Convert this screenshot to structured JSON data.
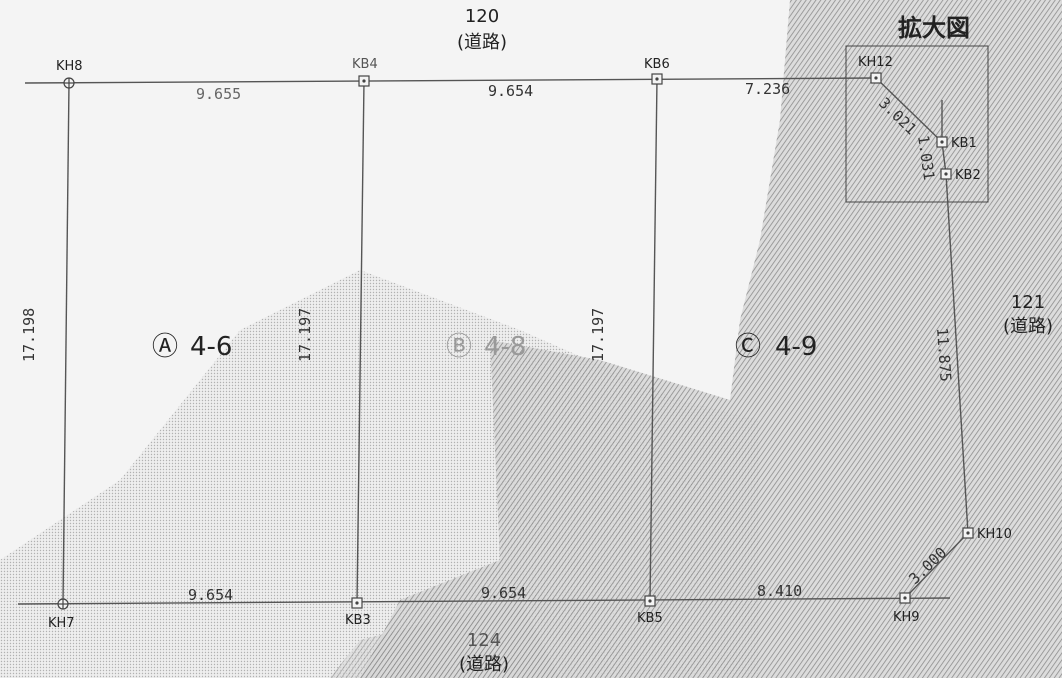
{
  "roads": {
    "top": {
      "number": "120",
      "name": "(道路)"
    },
    "right": {
      "number": "121",
      "name": "(道路)"
    },
    "bottom": {
      "number": "124",
      "name": "(道路)"
    }
  },
  "inset": {
    "title": "拡大図"
  },
  "points": {
    "KH8": "KH8",
    "KB4": "KB4",
    "KB6": "KB6",
    "KH12": "KH12",
    "KB1": "KB1",
    "KB2": "KB2",
    "KH10": "KH10",
    "KH9": "KH9",
    "KB5": "KB5",
    "KB3": "KB3",
    "KH7": "KH7"
  },
  "parcels": {
    "A": {
      "symbol": "Ⓐ",
      "number": "4-6"
    },
    "B": {
      "symbol": "Ⓑ",
      "number": "4-8"
    },
    "C": {
      "symbol": "Ⓒ",
      "number": "4-9"
    }
  },
  "distances": {
    "top_kh8_kb4": "9.655",
    "top_kb4_kb6": "9.654",
    "top_kb6_kh12": "7.236",
    "kh12_kb1": "3.021",
    "kb1_kb2": "1.031",
    "kb2_kh10": "11.875",
    "kh10_kh9": "3.000",
    "bottom_kh9_kb5": "8.410",
    "bottom_kb5_kb3": "9.654",
    "bottom_kb3_kh7": "9.654",
    "left_kh8_kh7": "17.198",
    "mid_kb4_kb3": "17.197",
    "mid_kb6_kb5": "17.197"
  },
  "colors": {
    "line": "#555555",
    "text": "#222222",
    "hatch": "#8a8a8a",
    "paper": "#f4f4f4"
  }
}
